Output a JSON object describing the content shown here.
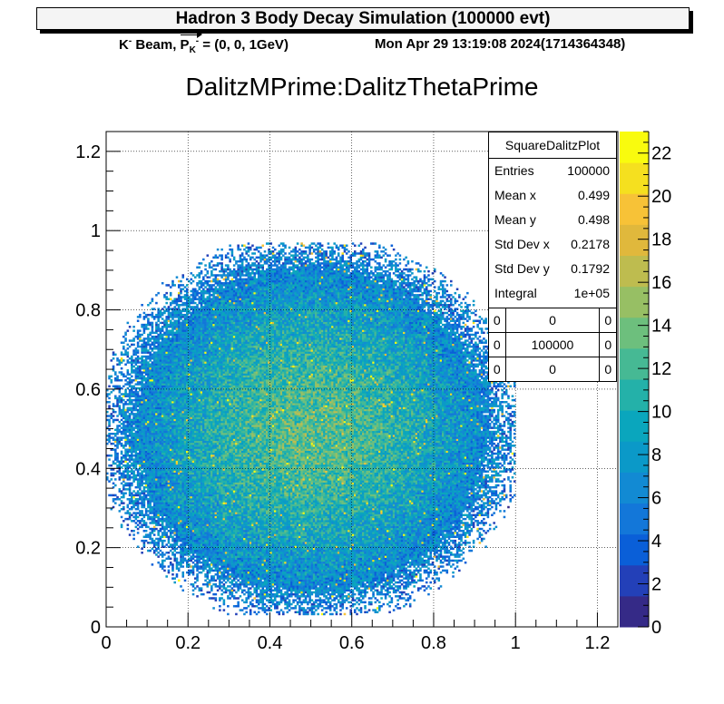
{
  "header": {
    "title": "Hadron 3 Body Decay Simulation (100000 evt)",
    "beam_label": "K",
    "beam_sup": "-",
    "beam_word": " Beam, ",
    "momentum_symbol": "P",
    "momentum_sub": "K",
    "momentum_sup": "-",
    "momentum_value": " = (0, 0, 1GeV)",
    "timestamp": "Mon Apr 29 13:19:08 2024(1714364348)"
  },
  "histogram_title": "DalitzMPrime:DalitzThetaPrime",
  "stats": {
    "name": "SquareDalitzPlot",
    "rows": [
      {
        "key": "Entries",
        "value": "100000"
      },
      {
        "key": "Mean x",
        "value": "0.499"
      },
      {
        "key": "Mean y",
        "value": "0.498"
      },
      {
        "key": "Std Dev x",
        "value": "0.2178"
      },
      {
        "key": "Std Dev y",
        "value": "0.1792"
      },
      {
        "key": "Integral",
        "value": "1e+05"
      }
    ],
    "overflow_grid": [
      [
        "0",
        "0",
        "0"
      ],
      [
        "0",
        "100000",
        "0"
      ],
      [
        "0",
        "0",
        "0"
      ]
    ]
  },
  "chart_data": {
    "type": "heatmap",
    "title": "DalitzMPrime:DalitzThetaPrime",
    "xlabel": "",
    "ylabel": "",
    "xlim": [
      0,
      1.25
    ],
    "ylim": [
      0,
      1.25
    ],
    "x_ticks": [
      "0",
      "0.2",
      "0.4",
      "0.6",
      "0.8",
      "1",
      "1.2"
    ],
    "y_ticks": [
      "0",
      "0.2",
      "0.4",
      "0.6",
      "0.8",
      "1",
      "1.2"
    ],
    "z_range": [
      0,
      23
    ],
    "z_ticks": [
      "0",
      "2",
      "4",
      "6",
      "8",
      "10",
      "12",
      "14",
      "16",
      "18",
      "20",
      "22"
    ],
    "grid": true,
    "bins": 250,
    "populated_region": {
      "x": [
        0.0,
        1.0
      ],
      "y": [
        0.03,
        0.97
      ]
    },
    "peak_count": 23,
    "entries": 100000,
    "mean_x": 0.499,
    "mean_y": 0.498,
    "std_x": 0.2178,
    "std_y": 0.1792,
    "colors": {
      "palette": [
        "#352a87",
        "#2340b8",
        "#0a5fd8",
        "#1377d9",
        "#128ad3",
        "#0b99c8",
        "#0aa6bd",
        "#24b1a9",
        "#46b994",
        "#6dbf7d",
        "#97bf64",
        "#bebc4f",
        "#e0b83c",
        "#f7c237",
        "#f5e01f",
        "#f9fb0e"
      ]
    }
  }
}
